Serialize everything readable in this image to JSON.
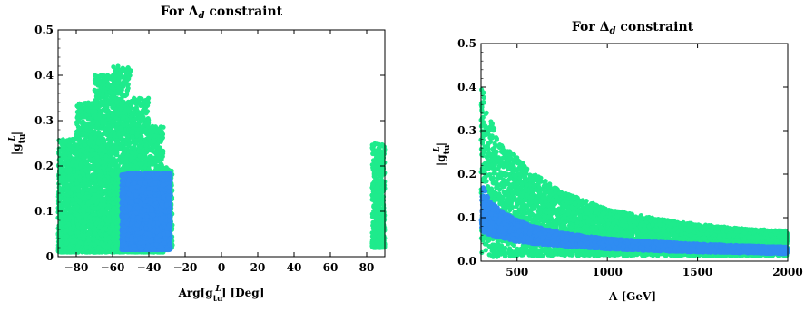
{
  "chart_data": [
    {
      "type": "scatter",
      "title": "For Δ_d  constraint",
      "xlabel": "Arg[g_tu^L] [Deg]",
      "ylabel": "|g_tu^L|",
      "xlim": [
        -90,
        90
      ],
      "ylim": [
        0,
        0.5
      ],
      "xticks": [
        -80,
        -60,
        -40,
        -20,
        0,
        20,
        40,
        60,
        80
      ],
      "yticks": [
        0,
        0.1,
        0.2,
        0.3,
        0.4,
        0.5
      ],
      "xtick_labels": [
        "−80",
        "−60",
        "−40",
        "−20",
        "0",
        "20",
        "40",
        "60",
        "80"
      ],
      "ytick_labels": [
        "0",
        "0.1",
        "0.2",
        "0.3",
        "0.4",
        "0.5"
      ],
      "grid": false,
      "series": [
        {
          "color": "#1eeb8c",
          "regions": [
            {
              "x": [
                -90,
                -80
              ],
              "y": [
                0.01,
                0.26
              ]
            },
            {
              "x": [
                -80,
                -70
              ],
              "y": [
                0.01,
                0.34
              ]
            },
            {
              "x": [
                -70,
                -60
              ],
              "y": [
                0.01,
                0.4
              ]
            },
            {
              "x": [
                -60,
                -50
              ],
              "y": [
                0.01,
                0.42
              ]
            },
            {
              "x": [
                -50,
                -40
              ],
              "y": [
                0.01,
                0.35
              ]
            },
            {
              "x": [
                -40,
                -32
              ],
              "y": [
                0.01,
                0.29
              ]
            },
            {
              "x": [
                -32,
                -27
              ],
              "y": [
                0.02,
                0.2
              ]
            },
            {
              "x": [
                83,
                90
              ],
              "y": [
                0.02,
                0.25
              ]
            }
          ]
        },
        {
          "color": "#2f8cf2",
          "regions": [
            {
              "x": [
                -55,
                -28
              ],
              "y": [
                0.015,
                0.185
              ]
            }
          ]
        }
      ]
    },
    {
      "type": "scatter",
      "title": "For Δ_d  constraint",
      "xlabel": "Λ [GeV]",
      "ylabel": "|g_tu^L|",
      "xlim": [
        300,
        2000
      ],
      "ylim": [
        0,
        0.5
      ],
      "xticks": [
        500,
        1000,
        1500,
        2000
      ],
      "yticks": [
        0,
        0.1,
        0.2,
        0.3,
        0.4,
        0.5
      ],
      "xtick_labels": [
        "500",
        "1000",
        "1500",
        "2000"
      ],
      "ytick_labels": [
        "0.0",
        "0.1",
        "0.2",
        "0.3",
        "0.4",
        "0.5"
      ],
      "grid": false,
      "series": [
        {
          "color": "#1eeb8c",
          "band_points": [
            [
              300,
              0.01,
              0.42
            ],
            [
              350,
              0.01,
              0.33
            ],
            [
              400,
              0.01,
              0.28
            ],
            [
              500,
              0.012,
              0.24
            ],
            [
              600,
              0.012,
              0.2
            ],
            [
              750,
              0.012,
              0.16
            ],
            [
              1000,
              0.012,
              0.12
            ],
            [
              1250,
              0.012,
              0.1
            ],
            [
              1500,
              0.012,
              0.085
            ],
            [
              1750,
              0.012,
              0.075
            ],
            [
              2000,
              0.012,
              0.07
            ]
          ]
        },
        {
          "color": "#2f8cf2",
          "band_points": [
            [
              300,
              0.07,
              0.18
            ],
            [
              350,
              0.06,
              0.14
            ],
            [
              400,
              0.055,
              0.12
            ],
            [
              500,
              0.045,
              0.095
            ],
            [
              600,
              0.04,
              0.08
            ],
            [
              750,
              0.035,
              0.065
            ],
            [
              1000,
              0.028,
              0.052
            ],
            [
              1250,
              0.024,
              0.045
            ],
            [
              1500,
              0.021,
              0.04
            ],
            [
              1750,
              0.019,
              0.036
            ],
            [
              2000,
              0.017,
              0.033
            ]
          ]
        }
      ]
    }
  ]
}
